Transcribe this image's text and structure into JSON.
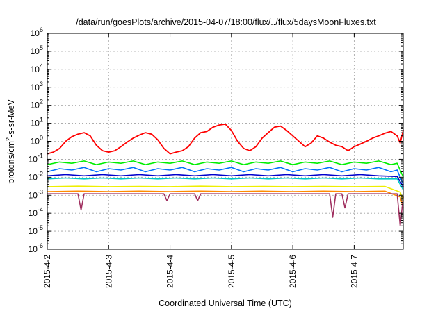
{
  "chart_data": {
    "type": "line",
    "title": "/data/run/goesPlots/archive/2015-04-07/18:00/flux/../flux/5daysMoonFluxes.txt",
    "xlabel": "Coordinated Universal Time (UTC)",
    "ylabel_parts": [
      "protons/cm",
      "2",
      "-s-sr-MeV"
    ],
    "y_scale": "log",
    "ylim": [
      1e-06,
      1000000.0
    ],
    "y_ticks": [
      {
        "base": "10",
        "exp": "-6",
        "value": -6
      },
      {
        "base": "10",
        "exp": "-5",
        "value": -5
      },
      {
        "base": "10",
        "exp": "-4",
        "value": -4
      },
      {
        "base": "10",
        "exp": "-3",
        "value": -3
      },
      {
        "base": "10",
        "exp": "-2",
        "value": -2
      },
      {
        "base": "10",
        "exp": "-1",
        "value": -1
      },
      {
        "base": "10",
        "exp": "0",
        "value": 0
      },
      {
        "base": "10",
        "exp": "1",
        "value": 1
      },
      {
        "base": "10",
        "exp": "2",
        "value": 2
      },
      {
        "base": "10",
        "exp": "3",
        "value": 3
      },
      {
        "base": "10",
        "exp": "4",
        "value": 4
      },
      {
        "base": "10",
        "exp": "5",
        "value": 5
      },
      {
        "base": "10",
        "exp": "6",
        "value": 6
      }
    ],
    "x_ticks": [
      "2015-4-2",
      "2015-4-3",
      "2015-4-4",
      "2015-4-5",
      "2015-4-6",
      "2015-4-7"
    ],
    "xlim_days": [
      0,
      5.8
    ],
    "grid": true,
    "legend": "none",
    "series": [
      {
        "color": "#ff0000",
        "points": [
          [
            0.0,
            0.2
          ],
          [
            0.1,
            0.25
          ],
          [
            0.2,
            0.4
          ],
          [
            0.3,
            1.0
          ],
          [
            0.4,
            1.8
          ],
          [
            0.5,
            2.5
          ],
          [
            0.6,
            3.0
          ],
          [
            0.7,
            2.0
          ],
          [
            0.8,
            0.6
          ],
          [
            0.9,
            0.3
          ],
          [
            1.0,
            0.25
          ],
          [
            1.1,
            0.3
          ],
          [
            1.2,
            0.5
          ],
          [
            1.3,
            0.9
          ],
          [
            1.4,
            1.5
          ],
          [
            1.5,
            2.2
          ],
          [
            1.6,
            3.0
          ],
          [
            1.7,
            2.5
          ],
          [
            1.8,
            1.2
          ],
          [
            1.9,
            0.4
          ],
          [
            2.0,
            0.2
          ],
          [
            2.1,
            0.25
          ],
          [
            2.2,
            0.3
          ],
          [
            2.3,
            0.5
          ],
          [
            2.4,
            1.5
          ],
          [
            2.5,
            3.0
          ],
          [
            2.6,
            3.5
          ],
          [
            2.7,
            6.0
          ],
          [
            2.8,
            8.0
          ],
          [
            2.9,
            9.0
          ],
          [
            3.0,
            4.0
          ],
          [
            3.1,
            1.0
          ],
          [
            3.2,
            0.4
          ],
          [
            3.3,
            0.3
          ],
          [
            3.4,
            0.5
          ],
          [
            3.5,
            1.5
          ],
          [
            3.6,
            3.0
          ],
          [
            3.7,
            6.0
          ],
          [
            3.8,
            7.0
          ],
          [
            3.9,
            4.0
          ],
          [
            4.0,
            2.0
          ],
          [
            4.1,
            1.0
          ],
          [
            4.2,
            0.5
          ],
          [
            4.3,
            0.8
          ],
          [
            4.4,
            2.0
          ],
          [
            4.5,
            1.5
          ],
          [
            4.6,
            0.9
          ],
          [
            4.7,
            0.6
          ],
          [
            4.8,
            0.5
          ],
          [
            4.9,
            0.3
          ],
          [
            5.0,
            0.5
          ],
          [
            5.1,
            0.7
          ],
          [
            5.2,
            1.0
          ],
          [
            5.3,
            1.5
          ],
          [
            5.4,
            2.0
          ],
          [
            5.5,
            2.8
          ],
          [
            5.6,
            3.5
          ],
          [
            5.7,
            2.0
          ],
          [
            5.75,
            0.8
          ],
          [
            5.8,
            4.0
          ]
        ]
      },
      {
        "color": "#00ee00",
        "points": [
          [
            0.0,
            0.05
          ],
          [
            0.2,
            0.07
          ],
          [
            0.4,
            0.06
          ],
          [
            0.6,
            0.08
          ],
          [
            0.8,
            0.05
          ],
          [
            1.0,
            0.07
          ],
          [
            1.2,
            0.06
          ],
          [
            1.4,
            0.08
          ],
          [
            1.6,
            0.05
          ],
          [
            1.8,
            0.07
          ],
          [
            2.0,
            0.06
          ],
          [
            2.2,
            0.08
          ],
          [
            2.4,
            0.05
          ],
          [
            2.6,
            0.07
          ],
          [
            2.8,
            0.06
          ],
          [
            3.0,
            0.08
          ],
          [
            3.2,
            0.05
          ],
          [
            3.4,
            0.07
          ],
          [
            3.6,
            0.06
          ],
          [
            3.8,
            0.08
          ],
          [
            4.0,
            0.05
          ],
          [
            4.2,
            0.07
          ],
          [
            4.4,
            0.06
          ],
          [
            4.6,
            0.08
          ],
          [
            4.8,
            0.05
          ],
          [
            5.0,
            0.07
          ],
          [
            5.2,
            0.06
          ],
          [
            5.4,
            0.08
          ],
          [
            5.6,
            0.05
          ],
          [
            5.7,
            0.06
          ],
          [
            5.8,
            0.01
          ]
        ]
      },
      {
        "color": "#0070ff",
        "points": [
          [
            0.0,
            0.02
          ],
          [
            0.2,
            0.03
          ],
          [
            0.4,
            0.025
          ],
          [
            0.6,
            0.035
          ],
          [
            0.8,
            0.02
          ],
          [
            1.0,
            0.03
          ],
          [
            1.2,
            0.025
          ],
          [
            1.4,
            0.035
          ],
          [
            1.6,
            0.02
          ],
          [
            1.8,
            0.03
          ],
          [
            2.0,
            0.025
          ],
          [
            2.2,
            0.035
          ],
          [
            2.4,
            0.02
          ],
          [
            2.6,
            0.03
          ],
          [
            2.8,
            0.025
          ],
          [
            3.0,
            0.035
          ],
          [
            3.2,
            0.02
          ],
          [
            3.4,
            0.03
          ],
          [
            3.6,
            0.025
          ],
          [
            3.8,
            0.035
          ],
          [
            4.0,
            0.02
          ],
          [
            4.2,
            0.03
          ],
          [
            4.4,
            0.025
          ],
          [
            4.6,
            0.035
          ],
          [
            4.8,
            0.02
          ],
          [
            5.0,
            0.03
          ],
          [
            5.2,
            0.025
          ],
          [
            5.4,
            0.035
          ],
          [
            5.6,
            0.02
          ],
          [
            5.7,
            0.025
          ],
          [
            5.8,
            0.004
          ]
        ]
      },
      {
        "color": "#00c8c8",
        "points": [
          [
            0.0,
            0.008
          ],
          [
            0.3,
            0.009
          ],
          [
            0.6,
            0.008
          ],
          [
            0.9,
            0.009
          ],
          [
            1.2,
            0.008
          ],
          [
            1.5,
            0.009
          ],
          [
            1.8,
            0.008
          ],
          [
            2.1,
            0.009
          ],
          [
            2.4,
            0.008
          ],
          [
            2.7,
            0.009
          ],
          [
            3.0,
            0.008
          ],
          [
            3.3,
            0.009
          ],
          [
            3.6,
            0.008
          ],
          [
            3.9,
            0.009
          ],
          [
            4.2,
            0.008
          ],
          [
            4.5,
            0.009
          ],
          [
            4.8,
            0.008
          ],
          [
            5.1,
            0.009
          ],
          [
            5.4,
            0.008
          ],
          [
            5.7,
            0.008
          ],
          [
            5.8,
            0.002
          ]
        ]
      },
      {
        "color": "#0000cc",
        "points": [
          [
            0.0,
            0.012
          ],
          [
            0.3,
            0.014
          ],
          [
            0.6,
            0.012
          ],
          [
            0.9,
            0.014
          ],
          [
            1.2,
            0.012
          ],
          [
            1.5,
            0.014
          ],
          [
            1.8,
            0.012
          ],
          [
            2.1,
            0.014
          ],
          [
            2.4,
            0.012
          ],
          [
            2.7,
            0.014
          ],
          [
            3.0,
            0.012
          ],
          [
            3.3,
            0.014
          ],
          [
            3.6,
            0.012
          ],
          [
            3.9,
            0.014
          ],
          [
            4.2,
            0.012
          ],
          [
            4.5,
            0.014
          ],
          [
            4.8,
            0.012
          ],
          [
            5.1,
            0.014
          ],
          [
            5.4,
            0.012
          ],
          [
            5.7,
            0.011
          ],
          [
            5.8,
            0.003
          ]
        ]
      },
      {
        "color": "#eeee00",
        "points": [
          [
            0.0,
            0.003
          ],
          [
            0.5,
            0.0032
          ],
          [
            1.0,
            0.003
          ],
          [
            1.5,
            0.0031
          ],
          [
            2.0,
            0.003
          ],
          [
            2.5,
            0.0032
          ],
          [
            3.0,
            0.003
          ],
          [
            3.5,
            0.0031
          ],
          [
            4.0,
            0.003
          ],
          [
            4.5,
            0.0031
          ],
          [
            5.0,
            0.003
          ],
          [
            5.5,
            0.0031
          ],
          [
            5.75,
            0.0015
          ],
          [
            5.8,
            0.0005
          ]
        ]
      },
      {
        "color": "#ff8c00",
        "points": [
          [
            0.0,
            0.0016
          ],
          [
            0.5,
            0.0017
          ],
          [
            1.0,
            0.0016
          ],
          [
            1.5,
            0.0017
          ],
          [
            2.0,
            0.0016
          ],
          [
            2.5,
            0.0017
          ],
          [
            3.0,
            0.0016
          ],
          [
            3.5,
            0.0017
          ],
          [
            4.0,
            0.0016
          ],
          [
            4.5,
            0.0017
          ],
          [
            5.0,
            0.0016
          ],
          [
            5.5,
            0.0017
          ],
          [
            5.75,
            0.0008
          ],
          [
            5.8,
            0.0002
          ]
        ]
      },
      {
        "color": "#a03060",
        "points": [
          [
            0.0,
            0.0012
          ],
          [
            0.3,
            0.0012
          ],
          [
            0.5,
            0.0012
          ],
          [
            0.55,
            0.00015
          ],
          [
            0.6,
            0.0012
          ],
          [
            1.0,
            0.0012
          ],
          [
            1.5,
            0.0012
          ],
          [
            1.9,
            0.0012
          ],
          [
            1.95,
            0.0005
          ],
          [
            2.0,
            0.0012
          ],
          [
            2.4,
            0.0012
          ],
          [
            2.45,
            0.0005
          ],
          [
            2.5,
            0.0012
          ],
          [
            3.0,
            0.0012
          ],
          [
            3.5,
            0.0012
          ],
          [
            4.0,
            0.0012
          ],
          [
            4.5,
            0.0012
          ],
          [
            4.6,
            0.0012
          ],
          [
            4.65,
            6e-05
          ],
          [
            4.7,
            0.0012
          ],
          [
            4.8,
            0.0012
          ],
          [
            4.85,
            0.0002
          ],
          [
            4.9,
            0.0012
          ],
          [
            5.2,
            0.0012
          ],
          [
            5.5,
            0.0012
          ],
          [
            5.7,
            0.0012
          ],
          [
            5.75,
            2e-05
          ],
          [
            5.8,
            0.0008
          ]
        ]
      }
    ]
  }
}
